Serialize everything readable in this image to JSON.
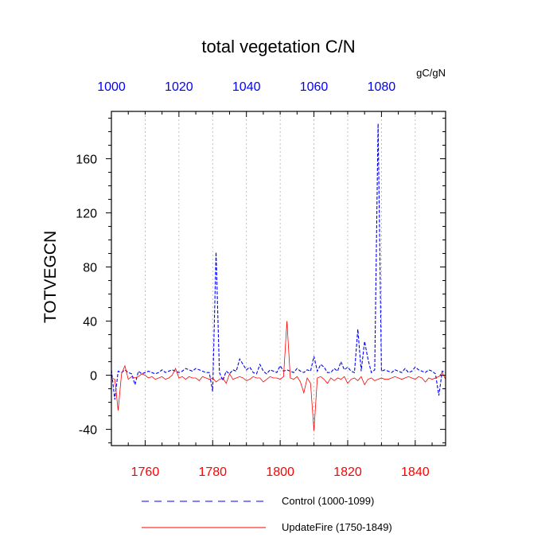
{
  "chart_data": {
    "type": "line",
    "title": "total vegetation C/N",
    "units_label": "gC/gN",
    "ylabel": "TOTVEGCN",
    "ylim": [
      -52,
      195
    ],
    "y_ticks": [
      -40,
      0,
      40,
      80,
      120,
      160
    ],
    "y_tick_labels": [
      "-40",
      "0",
      "40",
      "80",
      "120",
      "160"
    ],
    "bottom_axis": {
      "range": [
        1750,
        1849
      ],
      "ticks": [
        1760,
        1780,
        1800,
        1820,
        1840
      ],
      "labels": [
        "1760",
        "1780",
        "1800",
        "1820",
        "1840"
      ],
      "color": "#ff0000"
    },
    "top_axis": {
      "range": [
        1000,
        1099
      ],
      "ticks": [
        1000,
        1020,
        1040,
        1060,
        1080
      ],
      "labels": [
        "1000",
        "1020",
        "1040",
        "1060",
        "1080"
      ],
      "color": "#0000ff"
    },
    "grid": "vertical-dotted",
    "legend_position": "bottom",
    "series": [
      {
        "name": "Control (1000-1099)",
        "color": "#0000ff",
        "style": "dashed",
        "axis": "top",
        "x": [
          1000,
          1001,
          1002,
          1003,
          1004,
          1005,
          1006,
          1007,
          1008,
          1009,
          1010,
          1011,
          1012,
          1013,
          1014,
          1015,
          1016,
          1017,
          1018,
          1019,
          1020,
          1021,
          1022,
          1023,
          1024,
          1025,
          1026,
          1027,
          1028,
          1029,
          1030,
          1031,
          1032,
          1033,
          1034,
          1035,
          1036,
          1037,
          1038,
          1039,
          1040,
          1041,
          1042,
          1043,
          1044,
          1045,
          1046,
          1047,
          1048,
          1049,
          1050,
          1051,
          1052,
          1053,
          1054,
          1055,
          1056,
          1057,
          1058,
          1059,
          1060,
          1061,
          1062,
          1063,
          1064,
          1065,
          1066,
          1067,
          1068,
          1069,
          1070,
          1071,
          1072,
          1073,
          1074,
          1075,
          1076,
          1077,
          1078,
          1079,
          1080,
          1081,
          1082,
          1083,
          1084,
          1085,
          1086,
          1087,
          1088,
          1089,
          1090,
          1091,
          1092,
          1093,
          1094,
          1095,
          1096,
          1097,
          1098,
          1099
        ],
        "y": [
          4,
          -18,
          3,
          2,
          4,
          2,
          1,
          -7,
          3,
          1,
          2,
          3,
          2,
          1,
          2,
          4,
          2,
          3,
          4,
          3,
          2,
          3,
          5,
          4,
          3,
          5,
          4,
          3,
          2,
          2,
          -12,
          91,
          2,
          -4,
          3,
          1,
          4,
          3,
          12,
          8,
          4,
          6,
          2,
          1,
          8,
          3,
          1,
          4,
          3,
          2,
          7,
          3,
          4,
          3,
          2,
          5,
          3,
          2,
          4,
          3,
          14,
          3,
          8,
          6,
          2,
          2,
          5,
          3,
          10,
          4,
          6,
          3,
          2,
          34,
          3,
          25,
          12,
          2,
          4,
          186,
          3,
          4,
          3,
          2,
          4,
          3,
          2,
          5,
          2,
          3,
          6,
          4,
          3,
          2,
          4,
          3,
          1,
          -15,
          3,
          2
        ]
      },
      {
        "name": "UpdateFire (1750-1849)",
        "color": "#ff0000",
        "style": "solid",
        "axis": "bottom",
        "x": [
          1750,
          1751,
          1752,
          1753,
          1754,
          1755,
          1756,
          1757,
          1758,
          1759,
          1760,
          1761,
          1762,
          1763,
          1764,
          1765,
          1766,
          1767,
          1768,
          1769,
          1770,
          1771,
          1772,
          1773,
          1774,
          1775,
          1776,
          1777,
          1778,
          1779,
          1780,
          1781,
          1782,
          1783,
          1784,
          1785,
          1786,
          1787,
          1788,
          1789,
          1790,
          1791,
          1792,
          1793,
          1794,
          1795,
          1796,
          1797,
          1798,
          1799,
          1800,
          1801,
          1802,
          1803,
          1804,
          1805,
          1806,
          1807,
          1808,
          1809,
          1810,
          1811,
          1812,
          1813,
          1814,
          1815,
          1816,
          1817,
          1818,
          1819,
          1820,
          1821,
          1822,
          1823,
          1824,
          1825,
          1826,
          1827,
          1828,
          1829,
          1830,
          1831,
          1832,
          1833,
          1834,
          1835,
          1836,
          1837,
          1838,
          1839,
          1840,
          1841,
          1842,
          1843,
          1844,
          1845,
          1846,
          1847,
          1848,
          1849
        ],
        "y": [
          -2,
          -3,
          -26,
          1,
          7,
          -3,
          -1,
          -2,
          -1,
          1,
          0,
          -2,
          -1,
          -3,
          -2,
          -1,
          -3,
          -2,
          0,
          5,
          -2,
          -1,
          -3,
          -1,
          -2,
          -2,
          -4,
          -1,
          -2,
          -3,
          -2,
          -5,
          -3,
          -2,
          -6,
          1,
          -3,
          -2,
          -1,
          -2,
          -4,
          -3,
          -1,
          -2,
          -2,
          -5,
          -3,
          -1,
          -2,
          -2,
          -3,
          -1,
          40,
          -2,
          -3,
          -1,
          -5,
          -13,
          -2,
          -6,
          -41,
          -2,
          -1,
          -3,
          -6,
          -2,
          -4,
          -2,
          -3,
          -1,
          -6,
          -3,
          -2,
          -4,
          -1,
          -7,
          -3,
          -2,
          -4,
          -3,
          -2,
          -3,
          -3,
          -2,
          -1,
          -2,
          -3,
          -2,
          -1,
          -2,
          -3,
          -1,
          -2,
          -5,
          -2,
          -3,
          -2,
          -1,
          2,
          -3
        ]
      }
    ]
  }
}
